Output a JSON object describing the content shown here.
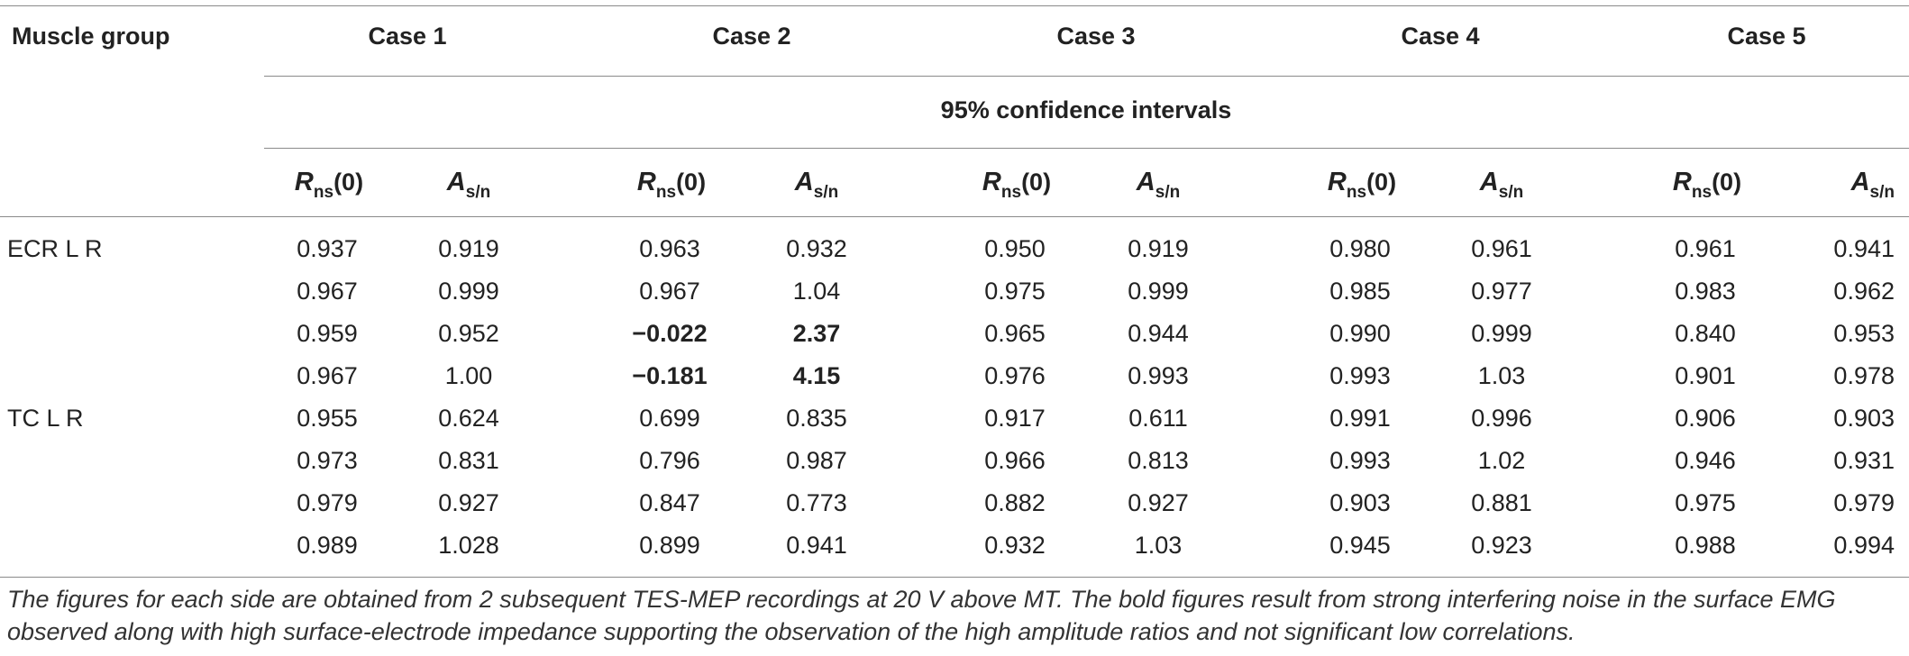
{
  "table": {
    "header": {
      "muscle_group_label": "Muscle group",
      "cases": [
        "Case 1",
        "Case 2",
        "Case 3",
        "Case 4",
        "Case 5"
      ],
      "subheader": "95% confidence intervals",
      "col_r_symbol": "R",
      "col_r_sub": "ns",
      "col_r_paren": "(0)",
      "col_a_symbol": "A",
      "col_a_sub": "s/n"
    },
    "row_groups": [
      {
        "label": "ECR L R"
      },
      {
        "label": "TC L R"
      }
    ],
    "rows": [
      [
        "0.937",
        "0.919",
        "0.963",
        "0.932",
        "0.950",
        "0.919",
        "0.980",
        "0.961",
        "0.961",
        "0.941"
      ],
      [
        "0.967",
        "0.999",
        "0.967",
        "1.04",
        "0.975",
        "0.999",
        "0.985",
        "0.977",
        "0.983",
        "0.962"
      ],
      [
        "0.959",
        "0.952",
        "−0.022",
        "2.37",
        "0.965",
        "0.944",
        "0.990",
        "0.999",
        "0.840",
        "0.953"
      ],
      [
        "0.967",
        "1.00",
        "−0.181",
        "4.15",
        "0.976",
        "0.993",
        "0.993",
        "1.03",
        "0.901",
        "0.978"
      ],
      [
        "0.955",
        "0.624",
        "0.699",
        "0.835",
        "0.917",
        "0.611",
        "0.991",
        "0.996",
        "0.906",
        "0.903"
      ],
      [
        "0.973",
        "0.831",
        "0.796",
        "0.987",
        "0.966",
        "0.813",
        "0.993",
        "1.02",
        "0.946",
        "0.931"
      ],
      [
        "0.979",
        "0.927",
        "0.847",
        "0.773",
        "0.882",
        "0.927",
        "0.903",
        "0.881",
        "0.975",
        "0.979"
      ],
      [
        "0.989",
        "1.028",
        "0.899",
        "0.941",
        "0.932",
        "1.03",
        "0.945",
        "0.923",
        "0.988",
        "0.994"
      ]
    ],
    "footnote": "The figures for each side are obtained from 2 subsequent TES-MEP recordings at 20 V above MT. The bold figures result from strong interfering noise in the surface EMG observed along with high surface-electrode impedance supporting the observation of the high amplitude ratios and not significant low correlations."
  }
}
